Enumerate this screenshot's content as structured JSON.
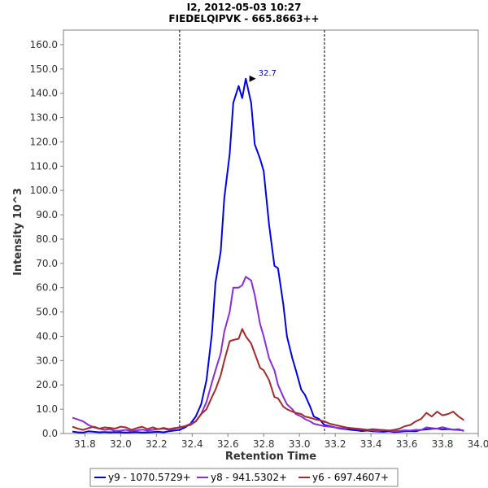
{
  "chart_data": {
    "type": "line",
    "title": "I2, 2012-05-03 10:27",
    "subtitle": "FIEDELQIPVK - 665.8663++",
    "xlabel": "Retention Time",
    "ylabel": "Intensity 10^3",
    "xlim": [
      31.68,
      34.0
    ],
    "ylim": [
      0,
      166
    ],
    "xticks": [
      31.8,
      32.0,
      32.2,
      32.4,
      32.6,
      32.8,
      33.0,
      33.2,
      33.4,
      33.6,
      33.8,
      34.0
    ],
    "xtick_labels": [
      "31.8",
      "32.0",
      "32.2",
      "32.4",
      "32.6",
      "32.8",
      "33.0",
      "33.2",
      "33.4",
      "33.6",
      "33.8",
      "34.0"
    ],
    "yticks": [
      0,
      10,
      20,
      30,
      40,
      50,
      60,
      70,
      80,
      90,
      100,
      110,
      120,
      130,
      140,
      150,
      160
    ],
    "ytick_labels": [
      "0.0",
      "10.0",
      "20.0",
      "30.0",
      "40.0",
      "50.0",
      "60.0",
      "70.0",
      "80.0",
      "90.0",
      "100.0",
      "110.0",
      "120.0",
      "130.0",
      "140.0",
      "150.0",
      "160.0"
    ],
    "vlines": [
      32.33,
      33.14
    ],
    "annotations": [
      {
        "x": 32.77,
        "y": 146,
        "text": "32.7"
      }
    ],
    "grid": false,
    "legend_position": "bottom",
    "series": [
      {
        "name": "y9 - 1070.5729+",
        "color": "#0000ee",
        "points": [
          [
            31.73,
            0.8
          ],
          [
            31.76,
            0.5
          ],
          [
            31.79,
            0.4
          ],
          [
            31.82,
            0.9
          ],
          [
            31.85,
            0.7
          ],
          [
            31.88,
            0.5
          ],
          [
            31.91,
            0.6
          ],
          [
            31.94,
            0.5
          ],
          [
            31.97,
            0.6
          ],
          [
            32.0,
            0.5
          ],
          [
            32.03,
            0.4
          ],
          [
            32.06,
            0.5
          ],
          [
            32.09,
            0.6
          ],
          [
            32.12,
            0.4
          ],
          [
            32.15,
            0.5
          ],
          [
            32.18,
            0.6
          ],
          [
            32.21,
            0.7
          ],
          [
            32.24,
            0.5
          ],
          [
            32.27,
            0.9
          ],
          [
            32.3,
            1.2
          ],
          [
            32.33,
            1.5
          ],
          [
            32.36,
            2.5
          ],
          [
            32.39,
            4.0
          ],
          [
            32.42,
            7.0
          ],
          [
            32.45,
            12.0
          ],
          [
            32.48,
            22.0
          ],
          [
            32.51,
            41.0
          ],
          [
            32.53,
            62.0
          ],
          [
            32.56,
            75.0
          ],
          [
            32.58,
            97.0
          ],
          [
            32.61,
            115.0
          ],
          [
            32.63,
            136.0
          ],
          [
            32.66,
            143.0
          ],
          [
            32.68,
            138.0
          ],
          [
            32.7,
            146.0
          ],
          [
            32.73,
            136.0
          ],
          [
            32.75,
            119.0
          ],
          [
            32.78,
            113.0
          ],
          [
            32.8,
            108.0
          ],
          [
            32.83,
            86.0
          ],
          [
            32.86,
            69.0
          ],
          [
            32.88,
            68.0
          ],
          [
            32.91,
            53.0
          ],
          [
            32.93,
            40.0
          ],
          [
            32.96,
            31.0
          ],
          [
            32.98,
            26.0
          ],
          [
            33.01,
            18.0
          ],
          [
            33.03,
            16.0
          ],
          [
            33.06,
            11.0
          ],
          [
            33.08,
            7.0
          ],
          [
            33.11,
            6.0
          ],
          [
            33.14,
            3.5
          ],
          [
            33.17,
            3.0
          ],
          [
            33.2,
            2.5
          ],
          [
            33.23,
            2.0
          ],
          [
            33.26,
            1.8
          ],
          [
            33.29,
            1.5
          ],
          [
            33.32,
            1.3
          ],
          [
            33.35,
            1.0
          ],
          [
            33.38,
            1.2
          ],
          [
            33.41,
            0.9
          ],
          [
            33.44,
            0.8
          ],
          [
            33.47,
            0.7
          ],
          [
            33.5,
            0.9
          ],
          [
            33.53,
            0.6
          ],
          [
            33.56,
            0.7
          ],
          [
            33.59,
            0.9
          ],
          [
            33.62,
            1.0
          ],
          [
            33.65,
            0.9
          ],
          [
            33.68,
            1.5
          ],
          [
            33.71,
            1.7
          ],
          [
            33.74,
            1.9
          ],
          [
            33.77,
            2.0
          ],
          [
            33.8,
            1.7
          ],
          [
            33.83,
            1.8
          ],
          [
            33.86,
            1.6
          ],
          [
            33.89,
            1.5
          ],
          [
            33.92,
            1.2
          ]
        ]
      },
      {
        "name": "y8 - 941.5302+",
        "color": "#8a2be2",
        "points": [
          [
            31.73,
            6.5
          ],
          [
            31.76,
            5.8
          ],
          [
            31.79,
            5.0
          ],
          [
            31.82,
            3.5
          ],
          [
            31.85,
            2.5
          ],
          [
            31.88,
            2.0
          ],
          [
            31.91,
            1.5
          ],
          [
            31.94,
            1.8
          ],
          [
            31.97,
            1.0
          ],
          [
            32.0,
            1.2
          ],
          [
            32.03,
            1.5
          ],
          [
            32.06,
            1.0
          ],
          [
            32.09,
            1.3
          ],
          [
            32.12,
            1.6
          ],
          [
            32.15,
            1.2
          ],
          [
            32.18,
            1.5
          ],
          [
            32.21,
            1.8
          ],
          [
            32.24,
            2.0
          ],
          [
            32.27,
            1.5
          ],
          [
            32.3,
            2.0
          ],
          [
            32.33,
            2.5
          ],
          [
            32.36,
            3.0
          ],
          [
            32.39,
            4.0
          ],
          [
            32.42,
            5.0
          ],
          [
            32.45,
            8.0
          ],
          [
            32.48,
            13.0
          ],
          [
            32.51,
            21.0
          ],
          [
            32.53,
            26.0
          ],
          [
            32.56,
            33.0
          ],
          [
            32.58,
            42.0
          ],
          [
            32.61,
            50.0
          ],
          [
            32.63,
            60.0
          ],
          [
            32.66,
            60.0
          ],
          [
            32.68,
            61.0
          ],
          [
            32.7,
            64.5
          ],
          [
            32.73,
            63.0
          ],
          [
            32.75,
            57.0
          ],
          [
            32.78,
            45.0
          ],
          [
            32.8,
            40.0
          ],
          [
            32.83,
            31.0
          ],
          [
            32.86,
            26.0
          ],
          [
            32.88,
            20.0
          ],
          [
            32.91,
            15.0
          ],
          [
            32.93,
            12.0
          ],
          [
            32.96,
            10.0
          ],
          [
            32.98,
            8.0
          ],
          [
            33.01,
            7.0
          ],
          [
            33.03,
            6.0
          ],
          [
            33.06,
            5.0
          ],
          [
            33.08,
            4.0
          ],
          [
            33.11,
            3.5
          ],
          [
            33.14,
            3.0
          ],
          [
            33.17,
            2.8
          ],
          [
            33.2,
            2.5
          ],
          [
            33.23,
            2.2
          ],
          [
            33.26,
            2.0
          ],
          [
            33.29,
            2.2
          ],
          [
            33.32,
            1.8
          ],
          [
            33.35,
            1.6
          ],
          [
            33.38,
            1.5
          ],
          [
            33.41,
            1.2
          ],
          [
            33.44,
            1.0
          ],
          [
            33.47,
            1.4
          ],
          [
            33.5,
            1.2
          ],
          [
            33.53,
            0.9
          ],
          [
            33.56,
            1.1
          ],
          [
            33.59,
            1.3
          ],
          [
            33.62,
            1.2
          ],
          [
            33.65,
            1.5
          ],
          [
            33.68,
            1.4
          ],
          [
            33.71,
            2.5
          ],
          [
            33.74,
            2.2
          ],
          [
            33.77,
            2.0
          ],
          [
            33.8,
            2.6
          ],
          [
            33.83,
            2.0
          ],
          [
            33.86,
            1.6
          ],
          [
            33.89,
            1.8
          ],
          [
            33.92,
            1.0
          ]
        ]
      },
      {
        "name": "y6 - 697.4607+",
        "color": "#a52a2a",
        "points": [
          [
            31.73,
            2.8
          ],
          [
            31.76,
            2.0
          ],
          [
            31.79,
            1.5
          ],
          [
            31.82,
            2.2
          ],
          [
            31.85,
            2.8
          ],
          [
            31.88,
            2.0
          ],
          [
            31.91,
            2.5
          ],
          [
            31.94,
            2.3
          ],
          [
            31.97,
            2.0
          ],
          [
            32.0,
            2.8
          ],
          [
            32.03,
            2.5
          ],
          [
            32.06,
            1.5
          ],
          [
            32.09,
            2.2
          ],
          [
            32.12,
            2.8
          ],
          [
            32.15,
            1.8
          ],
          [
            32.18,
            2.5
          ],
          [
            32.21,
            1.8
          ],
          [
            32.24,
            2.3
          ],
          [
            32.27,
            1.8
          ],
          [
            32.3,
            2.2
          ],
          [
            32.33,
            2.5
          ],
          [
            32.36,
            3.0
          ],
          [
            32.39,
            3.5
          ],
          [
            32.42,
            5.0
          ],
          [
            32.45,
            8.0
          ],
          [
            32.48,
            10.0
          ],
          [
            32.51,
            15.0
          ],
          [
            32.53,
            18.0
          ],
          [
            32.56,
            24.0
          ],
          [
            32.58,
            30.0
          ],
          [
            32.61,
            38.0
          ],
          [
            32.63,
            38.5
          ],
          [
            32.66,
            39.0
          ],
          [
            32.68,
            43.0
          ],
          [
            32.7,
            40.0
          ],
          [
            32.73,
            37.0
          ],
          [
            32.75,
            33.0
          ],
          [
            32.78,
            27.0
          ],
          [
            32.8,
            26.0
          ],
          [
            32.83,
            22.0
          ],
          [
            32.86,
            15.0
          ],
          [
            32.88,
            14.5
          ],
          [
            32.91,
            11.0
          ],
          [
            32.93,
            10.0
          ],
          [
            32.96,
            9.0
          ],
          [
            32.98,
            8.5
          ],
          [
            33.01,
            8.0
          ],
          [
            33.03,
            7.0
          ],
          [
            33.06,
            6.5
          ],
          [
            33.08,
            6.0
          ],
          [
            33.11,
            5.5
          ],
          [
            33.14,
            5.0
          ],
          [
            33.17,
            4.0
          ],
          [
            33.2,
            3.5
          ],
          [
            33.23,
            3.0
          ],
          [
            33.26,
            2.5
          ],
          [
            33.29,
            2.2
          ],
          [
            33.32,
            2.0
          ],
          [
            33.35,
            1.8
          ],
          [
            33.38,
            1.5
          ],
          [
            33.41,
            1.8
          ],
          [
            33.44,
            1.6
          ],
          [
            33.47,
            1.4
          ],
          [
            33.5,
            1.2
          ],
          [
            33.53,
            1.5
          ],
          [
            33.56,
            2.0
          ],
          [
            33.59,
            3.0
          ],
          [
            33.62,
            3.5
          ],
          [
            33.65,
            5.0
          ],
          [
            33.68,
            6.0
          ],
          [
            33.71,
            8.5
          ],
          [
            33.74,
            7.0
          ],
          [
            33.77,
            9.0
          ],
          [
            33.8,
            7.5
          ],
          [
            33.83,
            8.0
          ],
          [
            33.86,
            9.0
          ],
          [
            33.89,
            7.0
          ],
          [
            33.92,
            5.5
          ]
        ]
      }
    ]
  }
}
